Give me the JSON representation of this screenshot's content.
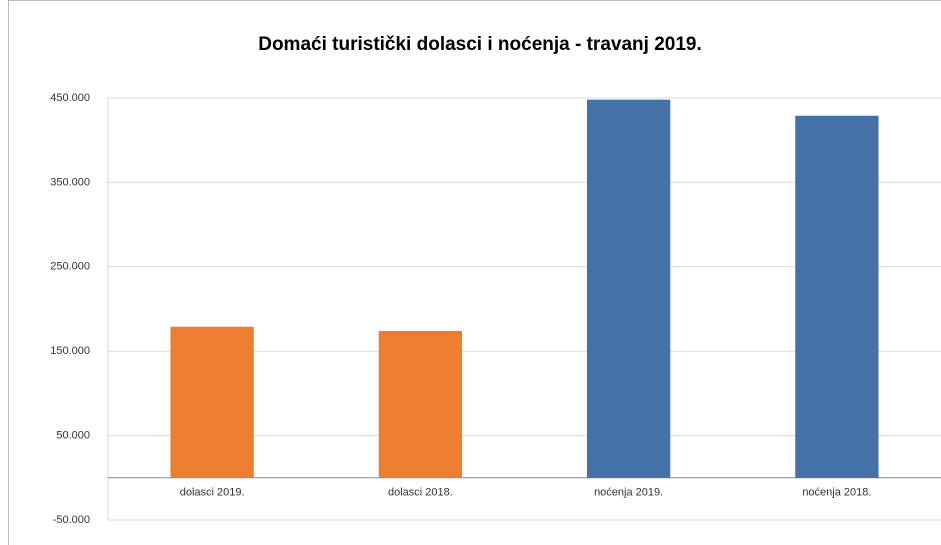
{
  "chart_data": {
    "type": "bar",
    "title": "Domaći turistički dolasci i noćenja - travanj 2019.",
    "categories": [
      "dolasci 2019.",
      "dolasci 2018.",
      "noćenja 2019.",
      "noćenja 2018."
    ],
    "values": [
      179000,
      174000,
      448000,
      429000
    ],
    "colors": [
      "#ed7d31",
      "#ed7d31",
      "#4472a8",
      "#4472a8"
    ],
    "ylim": [
      -50000,
      450000
    ],
    "yticks": [
      {
        "value": -50000,
        "label": "-50.000"
      },
      {
        "value": 50000,
        "label": "50.000"
      },
      {
        "value": 150000,
        "label": "150.000"
      },
      {
        "value": 250000,
        "label": "250.000"
      },
      {
        "value": 350000,
        "label": "350.000"
      },
      {
        "value": 450000,
        "label": "450.000"
      }
    ],
    "grid": true
  }
}
